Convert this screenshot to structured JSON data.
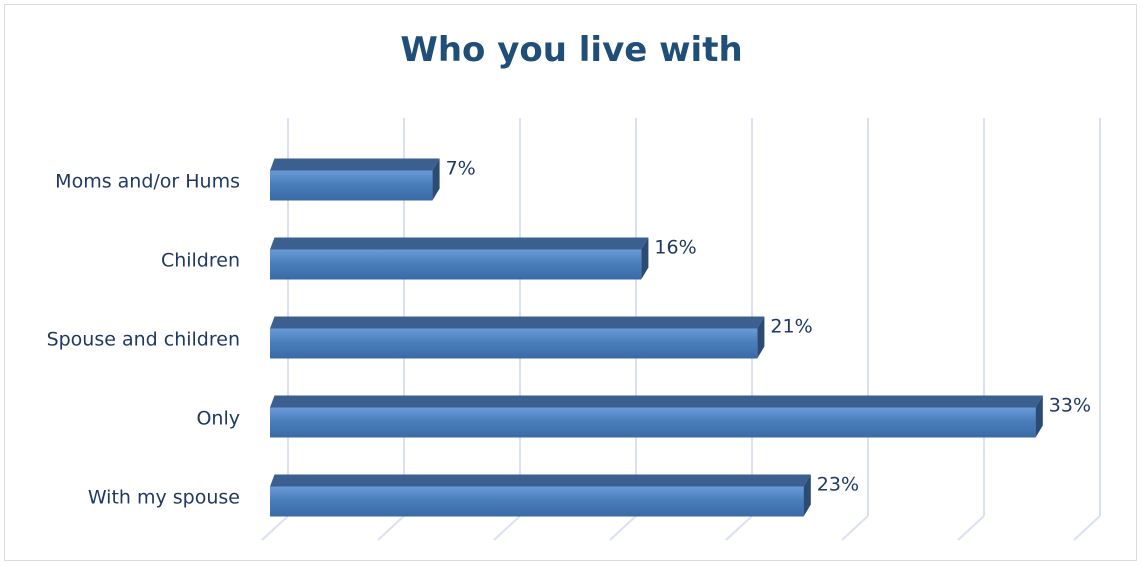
{
  "chart_data": {
    "type": "bar",
    "orientation": "horizontal",
    "title": "Who you live with",
    "categories": [
      "Moms and/or Hums",
      "Children",
      "Spouse and children",
      "Only",
      "With my spouse"
    ],
    "values": [
      7,
      16,
      21,
      33,
      23
    ],
    "value_labels": [
      "7%",
      "16%",
      "21%",
      "33%",
      "23%"
    ],
    "xlim": [
      0,
      35
    ],
    "grid": "vertical",
    "legend": "none",
    "bar_color": "#4a7ebb",
    "bar_top_color": "#3b5f8f",
    "bar_side_color": "#2b4a74",
    "gridline_color": "#d9e1f2",
    "label_color": "#1f3864",
    "title_color": "#1f4e79"
  }
}
